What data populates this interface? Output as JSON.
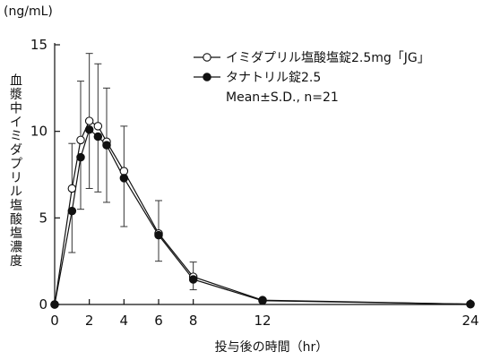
{
  "chart_data": {
    "type": "line",
    "unit_label": "(ng/mL)",
    "ylabel": "血漿中イミダプリル塩酸塩濃度",
    "xlabel": "投与後の時間（hr）",
    "xlim": [
      0,
      24
    ],
    "ylim": [
      0,
      15
    ],
    "x_ticks": [
      0,
      2,
      4,
      6,
      8,
      12,
      24
    ],
    "y_ticks": [
      0,
      5,
      10,
      15
    ],
    "grid": false,
    "legend_placement": "top-right",
    "note": "Mean±S.D., n=21",
    "series": [
      {
        "name": "イミダプリル塩酸塩錠2.5mg「JG」",
        "marker": "open-circle",
        "x": [
          0,
          1,
          1.5,
          2,
          2.5,
          3,
          4,
          6,
          8,
          12,
          24
        ],
        "y": [
          0,
          6.7,
          9.5,
          10.6,
          10.3,
          9.4,
          7.7,
          4.1,
          1.6,
          0.25,
          0.02
        ],
        "sd": [
          0,
          2.6,
          3.4,
          3.9,
          3.6,
          3.1,
          2.6,
          1.9,
          0.85,
          0,
          0
        ]
      },
      {
        "name": "タナトリル錠2.5",
        "marker": "filled-circle",
        "x": [
          0,
          1,
          1.5,
          2,
          2.5,
          3,
          4,
          6,
          8,
          12,
          24
        ],
        "y": [
          0,
          5.4,
          8.5,
          10.1,
          9.7,
          9.2,
          7.3,
          4.0,
          1.45,
          0.22,
          0.02
        ],
        "sd": [
          0,
          2.4,
          3.0,
          3.4,
          3.2,
          3.3,
          2.8,
          1.5,
          0.6,
          0,
          0
        ]
      }
    ]
  }
}
